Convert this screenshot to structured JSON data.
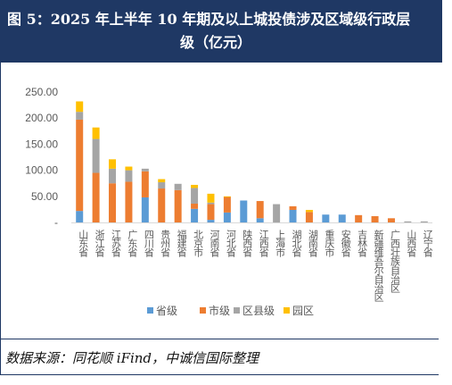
{
  "header": {
    "title_line1": "图 5：2025 年上半年 10 年期及以上城投债涉及区域级行政层",
    "title_line2": "级（亿元）"
  },
  "footer": {
    "source": "数据来源：同花顺 iFind，中诚信国际整理"
  },
  "colors": {
    "header_bg": "#1f3864",
    "省级": "#5b9bd5",
    "市级": "#ed7d31",
    "区县级": "#a5a5a5",
    "园区": "#ffc000"
  },
  "chart_data": {
    "type": "bar",
    "stacked": true,
    "categories": [
      "山东省",
      "浙江省",
      "江苏省",
      "广东省",
      "四川省",
      "贵州省",
      "福建省",
      "北京市",
      "河南省",
      "河北省",
      "陕西省",
      "江西省",
      "上海市",
      "湖北省",
      "湖南省",
      "重庆市",
      "安徽省",
      "吉林省",
      "新疆维吾尔自治区",
      "广西壮族自治区",
      "山西省",
      "辽宁省"
    ],
    "series": [
      {
        "name": "省级",
        "values": [
          22,
          0,
          0,
          0,
          48,
          0,
          0,
          26,
          5,
          19,
          42,
          8,
          0,
          24,
          0,
          15,
          15,
          0,
          0,
          0,
          0,
          0
        ]
      },
      {
        "name": "市级",
        "values": [
          175,
          95,
          75,
          78,
          50,
          65,
          62,
          10,
          30,
          30,
          0,
          33,
          0,
          7,
          20,
          0,
          0,
          14,
          12,
          8,
          0,
          0
        ]
      },
      {
        "name": "区县级",
        "values": [
          15,
          65,
          28,
          22,
          5,
          12,
          12,
          30,
          3,
          0,
          0,
          0,
          35,
          0,
          0,
          0,
          0,
          0,
          0,
          0,
          2,
          2
        ]
      },
      {
        "name": "园区",
        "values": [
          20,
          22,
          18,
          7,
          0,
          6,
          0,
          6,
          17,
          1,
          0,
          0,
          0,
          0,
          4,
          0,
          0,
          0,
          0,
          0,
          0,
          0
        ]
      }
    ],
    "ylim": [
      0,
      250
    ],
    "yticks": [
      "250.00",
      "200.00",
      "150.00",
      "100.00",
      "50.00",
      "-"
    ],
    "legend_position": "bottom",
    "grid": false
  }
}
